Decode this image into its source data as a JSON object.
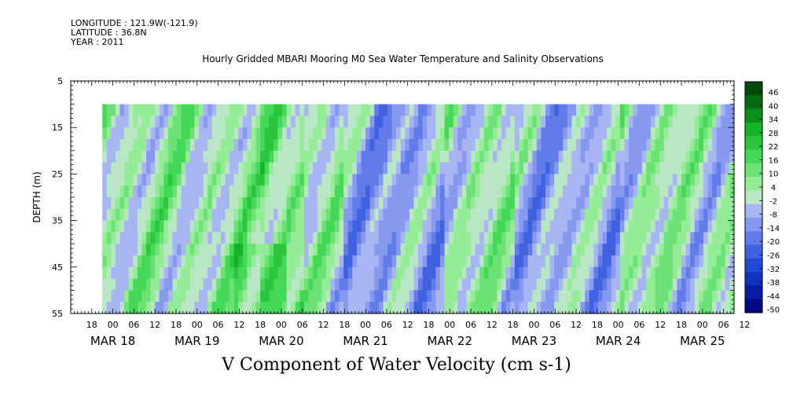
{
  "meta": {
    "longitude": "LONGITUDE : 121.9W(-121.9)",
    "latitude": "LATITUDE : 36.8N",
    "year": "YEAR : 2011"
  },
  "chart_data": {
    "type": "heatmap",
    "title": "Hourly Gridded MBARI Mooring M0 Sea Water Temperature and Salinity Observations",
    "xlabel": "V Component of Water Velocity (cm s-1)",
    "ylabel": "DEPTH (m)",
    "yticks": [
      "5",
      "15",
      "25",
      "35",
      "45",
      "55"
    ],
    "ylim": [
      5,
      55
    ],
    "y_reversed": true,
    "hour_ticks": [
      "18",
      "00",
      "06",
      "12",
      "18",
      "00",
      "06",
      "12",
      "18",
      "00",
      "06",
      "12",
      "18",
      "00",
      "06",
      "12",
      "18",
      "00",
      "06",
      "12",
      "18",
      "00",
      "06",
      "12",
      "18",
      "00",
      "06",
      "12",
      "18",
      "00",
      "06",
      "12"
    ],
    "date_ticks": [
      "MAR 18",
      "MAR 19",
      "MAR 20",
      "MAR 21",
      "MAR 22",
      "MAR 23",
      "MAR 24",
      "MAR 25"
    ],
    "colorbar_labels": [
      "46",
      "40",
      "34",
      "28",
      "22",
      "16",
      "10",
      "4",
      "-2",
      "-8",
      "-14",
      "-20",
      "-26",
      "-32",
      "-38",
      "-44",
      "-50"
    ],
    "colorbar_range": [
      -50,
      50
    ],
    "data_depth_range": [
      10,
      55
    ],
    "time_range_hours": [
      -6,
      183
    ],
    "data_start_hour": 3
  }
}
